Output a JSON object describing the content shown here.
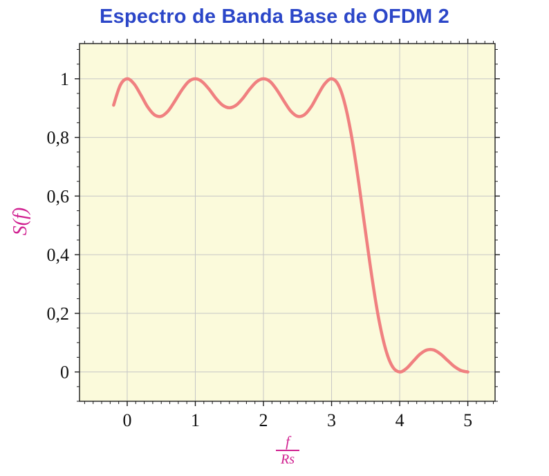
{
  "chart_data": {
    "type": "line",
    "title": "Espectro de Banda Base de OFDM 2",
    "ylabel": "S(f)",
    "xlabel_numerator": "f",
    "xlabel_denominator": "Rs",
    "xlim": [
      -0.7,
      5.4
    ],
    "ylim": [
      -0.1,
      1.12
    ],
    "grid": true,
    "legend": false,
    "xticks": {
      "values": [
        0,
        1,
        2,
        3,
        4,
        5
      ],
      "labels": [
        "0",
        "1",
        "2",
        "3",
        "4",
        "5"
      ]
    },
    "yticks": {
      "values": [
        0,
        0.2,
        0.4,
        0.6,
        0.8,
        1
      ],
      "labels": [
        "0",
        "0,2",
        "0,4",
        "0,6",
        "0,8",
        "1"
      ]
    },
    "minor_x_step": 0.125,
    "minor_y_step": 0.05,
    "colors": {
      "curve": "#f08080",
      "title": "#2b46c8",
      "axis_label": "#d02090",
      "grid": "#c6c6c6",
      "frame": "#1a1a1a",
      "tick": "#1a1a1a",
      "tick_label": "#111111",
      "plot_bg": "#fbfadb"
    },
    "series": [
      {
        "name": "S(f)",
        "x": [
          -0.2,
          -0.1,
          0.0,
          0.1,
          0.2,
          0.3,
          0.4,
          0.5,
          0.6,
          0.7,
          0.8,
          0.9,
          1.0,
          1.1,
          1.2,
          1.3,
          1.4,
          1.5,
          1.6,
          1.7,
          1.8,
          1.9,
          2.0,
          2.1,
          2.2,
          2.3,
          2.4,
          2.5,
          2.6,
          2.7,
          2.8,
          2.9,
          3.0,
          3.1,
          3.2,
          3.3,
          3.4,
          3.5,
          3.6,
          3.7,
          3.8,
          3.9,
          4.0,
          4.1,
          4.2,
          4.3,
          4.4,
          4.5,
          4.6,
          4.7,
          4.8,
          4.9,
          5.0
        ],
        "y": [
          0.91,
          0.979,
          1.0,
          0.983,
          0.945,
          0.904,
          0.877,
          0.872,
          0.89,
          0.924,
          0.961,
          0.99,
          1.0,
          0.99,
          0.965,
          0.934,
          0.91,
          0.901,
          0.91,
          0.934,
          0.965,
          0.99,
          1.0,
          0.99,
          0.961,
          0.924,
          0.89,
          0.872,
          0.877,
          0.904,
          0.945,
          0.983,
          1.0,
          0.979,
          0.91,
          0.795,
          0.643,
          0.475,
          0.311,
          0.172,
          0.072,
          0.016,
          0.0,
          0.012,
          0.037,
          0.061,
          0.075,
          0.075,
          0.061,
          0.04,
          0.019,
          0.005,
          0.0
        ]
      }
    ]
  }
}
